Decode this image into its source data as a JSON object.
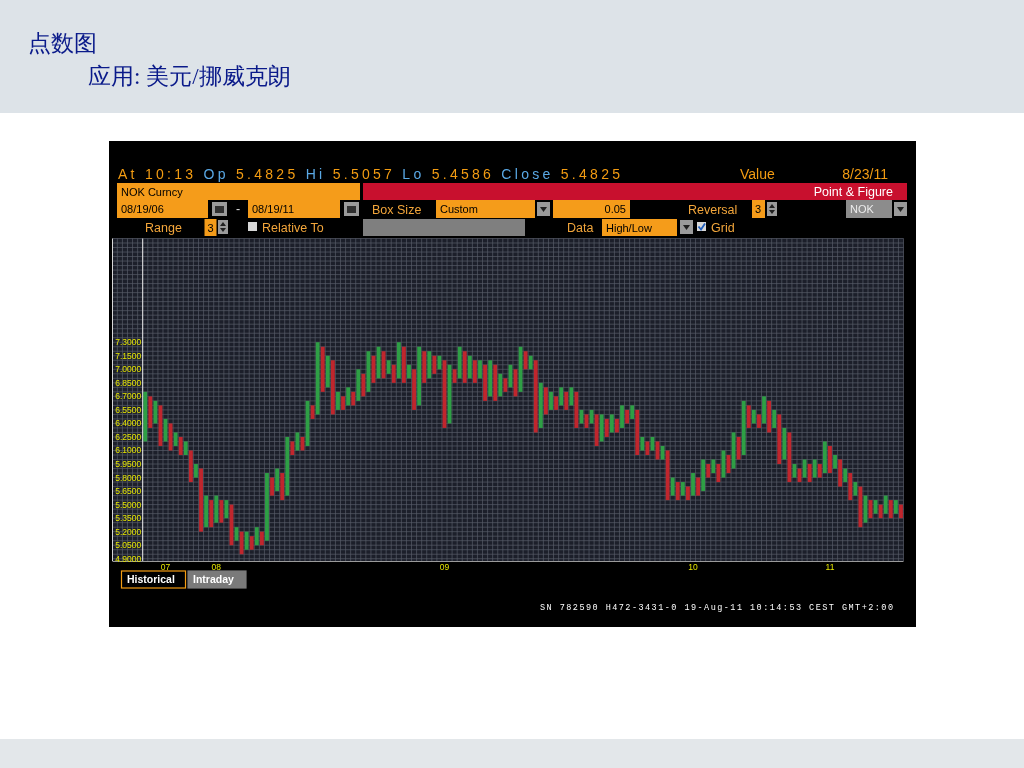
{
  "chart_data": {
    "type": "bar",
    "title": "点数图",
    "subtitle": "应用: 美元/挪威克朗",
    "categories": [
      null,
      null,
      null,
      null,
      "07",
      null,
      null,
      null,
      null,
      null,
      null,
      null,
      null,
      null,
      "08",
      null,
      null,
      null,
      null,
      null,
      null,
      null,
      null,
      null,
      null,
      null,
      null,
      null,
      null,
      null,
      null,
      null,
      null,
      null,
      null,
      null,
      null,
      null,
      null,
      null,
      null,
      null,
      null,
      null,
      null,
      null,
      null,
      null,
      null,
      null,
      null,
      null,
      null,
      null,
      null,
      null,
      null,
      null,
      null,
      "09",
      null,
      null,
      null,
      null,
      null,
      null,
      null,
      null,
      null,
      null,
      null,
      null,
      null,
      null,
      null,
      null,
      null,
      null,
      null,
      null,
      null,
      null,
      null,
      null,
      null,
      null,
      null,
      null,
      null,
      null,
      null,
      null,
      null,
      null,
      null,
      null,
      null,
      null,
      null,
      null,
      null,
      null,
      null,
      null,
      null,
      null,
      null,
      null,
      "10",
      null,
      null,
      null,
      null,
      null,
      null,
      null,
      null,
      null,
      null,
      null,
      null,
      null,
      null,
      null,
      null,
      null,
      null,
      null,
      null,
      null,
      null,
      null,
      null,
      null,
      null,
      "11",
      null,
      null,
      null,
      null,
      null,
      null,
      null,
      null,
      null,
      null,
      null,
      null,
      null,
      null
    ],
    "base": [
      6.2,
      6.35,
      6.4,
      6.15,
      6.2,
      6.1,
      6.15,
      6.05,
      6.05,
      5.75,
      5.8,
      5.2,
      5.25,
      5.25,
      5.3,
      5.3,
      5.35,
      5.05,
      5.1,
      4.95,
      5.0,
      5.0,
      5.05,
      5.05,
      5.1,
      5.6,
      5.65,
      5.55,
      5.6,
      6.05,
      6.1,
      6.1,
      6.15,
      6.45,
      6.5,
      6.75,
      6.8,
      6.5,
      6.55,
      6.55,
      6.6,
      6.6,
      6.65,
      6.7,
      6.75,
      6.85,
      6.9,
      6.9,
      6.95,
      6.85,
      6.9,
      6.85,
      6.9,
      6.55,
      6.6,
      6.85,
      6.9,
      6.95,
      7.0,
      6.35,
      6.4,
      6.85,
      6.9,
      6.85,
      6.9,
      6.85,
      6.9,
      6.65,
      6.7,
      6.65,
      6.7,
      6.75,
      6.8,
      6.7,
      6.75,
      7.0,
      7.0,
      6.3,
      6.35,
      6.5,
      6.55,
      6.55,
      6.6,
      6.55,
      6.6,
      6.35,
      6.4,
      6.35,
      6.4,
      6.15,
      6.2,
      6.25,
      6.3,
      6.3,
      6.35,
      6.4,
      6.45,
      6.05,
      6.1,
      6.05,
      6.1,
      6.0,
      6.0,
      5.55,
      5.6,
      5.55,
      5.6,
      5.55,
      5.6,
      5.6,
      5.65,
      5.8,
      5.85,
      5.75,
      5.8,
      5.85,
      5.9,
      6.0,
      6.05,
      6.35,
      6.4,
      6.35,
      6.4,
      6.3,
      6.35,
      5.95,
      6.0,
      5.75,
      5.8,
      5.75,
      5.8,
      5.75,
      5.8,
      5.8,
      5.85,
      5.85,
      5.9,
      5.7,
      5.75,
      5.55,
      5.6,
      5.25,
      5.3,
      5.35,
      5.4,
      5.35,
      5.4,
      5.35,
      5.4,
      5.35
    ],
    "values": [
      0.55,
      0.35,
      0.25,
      0.45,
      0.25,
      0.3,
      0.15,
      0.2,
      0.15,
      0.35,
      0.15,
      0.7,
      0.35,
      0.3,
      0.3,
      0.25,
      0.2,
      0.45,
      0.15,
      0.25,
      0.2,
      0.15,
      0.2,
      0.15,
      0.75,
      0.2,
      0.25,
      0.3,
      0.65,
      0.15,
      0.2,
      0.15,
      0.5,
      0.15,
      0.8,
      0.5,
      0.35,
      0.6,
      0.2,
      0.15,
      0.2,
      0.15,
      0.35,
      0.25,
      0.45,
      0.3,
      0.35,
      0.3,
      0.15,
      0.2,
      0.4,
      0.4,
      0.15,
      0.45,
      0.65,
      0.35,
      0.3,
      0.2,
      0.15,
      0.75,
      0.65,
      0.15,
      0.35,
      0.35,
      0.25,
      0.25,
      0.2,
      0.4,
      0.4,
      0.4,
      0.25,
      0.15,
      0.25,
      0.3,
      0.5,
      0.2,
      0.15,
      0.8,
      0.5,
      0.3,
      0.2,
      0.15,
      0.2,
      0.2,
      0.2,
      0.4,
      0.15,
      0.15,
      0.15,
      0.35,
      0.3,
      0.2,
      0.2,
      0.15,
      0.25,
      0.15,
      0.15,
      0.5,
      0.15,
      0.15,
      0.15,
      0.2,
      0.15,
      0.55,
      0.2,
      0.2,
      0.15,
      0.15,
      0.25,
      0.2,
      0.35,
      0.15,
      0.15,
      0.2,
      0.3,
      0.2,
      0.4,
      0.25,
      0.6,
      0.25,
      0.15,
      0.15,
      0.3,
      0.35,
      0.2,
      0.55,
      0.35,
      0.55,
      0.15,
      0.15,
      0.2,
      0.2,
      0.2,
      0.15,
      0.35,
      0.3,
      0.15,
      0.3,
      0.15,
      0.3,
      0.15,
      0.45,
      0.3,
      0.2,
      0.15,
      0.15,
      0.2,
      0.2,
      0.15,
      0.15
    ],
    "colors": [
      "#2e9f45",
      "#c0262d",
      "#2e9f45",
      "#c0262d",
      "#2e9f45",
      "#c0262d",
      "#2e9f45",
      "#c0262d",
      "#2e9f45",
      "#c0262d",
      "#2e9f45",
      "#c0262d",
      "#2e9f45",
      "#c0262d",
      "#2e9f45",
      "#c0262d",
      "#2e9f45",
      "#c0262d",
      "#2e9f45",
      "#c0262d",
      "#2e9f45",
      "#c0262d",
      "#2e9f45",
      "#c0262d",
      "#2e9f45",
      "#c0262d",
      "#2e9f45",
      "#c0262d",
      "#2e9f45",
      "#c0262d",
      "#2e9f45",
      "#c0262d",
      "#2e9f45",
      "#c0262d",
      "#2e9f45",
      "#c0262d",
      "#2e9f45",
      "#c0262d",
      "#2e9f45",
      "#c0262d",
      "#2e9f45",
      "#c0262d",
      "#2e9f45",
      "#c0262d",
      "#2e9f45",
      "#c0262d",
      "#2e9f45",
      "#c0262d",
      "#2e9f45",
      "#c0262d",
      "#2e9f45",
      "#c0262d",
      "#2e9f45",
      "#c0262d",
      "#2e9f45",
      "#c0262d",
      "#2e9f45",
      "#c0262d",
      "#2e9f45",
      "#c0262d",
      "#2e9f45",
      "#c0262d",
      "#2e9f45",
      "#c0262d",
      "#2e9f45",
      "#c0262d",
      "#2e9f45",
      "#c0262d",
      "#2e9f45",
      "#c0262d",
      "#2e9f45",
      "#c0262d",
      "#2e9f45",
      "#c0262d",
      "#2e9f45",
      "#c0262d",
      "#2e9f45",
      "#c0262d",
      "#2e9f45",
      "#c0262d",
      "#2e9f45",
      "#c0262d",
      "#2e9f45",
      "#c0262d",
      "#2e9f45",
      "#c0262d",
      "#2e9f45",
      "#c0262d",
      "#2e9f45",
      "#c0262d",
      "#2e9f45",
      "#c0262d",
      "#2e9f45",
      "#c0262d",
      "#2e9f45",
      "#c0262d",
      "#2e9f45",
      "#c0262d",
      "#2e9f45",
      "#c0262d",
      "#2e9f45",
      "#c0262d",
      "#2e9f45",
      "#c0262d",
      "#2e9f45",
      "#c0262d",
      "#2e9f45",
      "#c0262d",
      "#2e9f45",
      "#c0262d",
      "#2e9f45",
      "#c0262d",
      "#2e9f45",
      "#c0262d",
      "#2e9f45",
      "#c0262d",
      "#2e9f45",
      "#c0262d",
      "#2e9f45",
      "#c0262d",
      "#2e9f45",
      "#c0262d",
      "#2e9f45",
      "#c0262d",
      "#2e9f45",
      "#c0262d",
      "#2e9f45",
      "#c0262d",
      "#2e9f45",
      "#c0262d",
      "#2e9f45",
      "#c0262d",
      "#2e9f45",
      "#c0262d",
      "#2e9f45",
      "#c0262d",
      "#2e9f45",
      "#c0262d",
      "#2e9f45",
      "#c0262d",
      "#2e9f45",
      "#c0262d",
      "#2e9f45",
      "#c0262d",
      "#2e9f45",
      "#c0262d",
      "#2e9f45",
      "#c0262d",
      "#2e9f45",
      "#c0262d"
    ],
    "ylim": [
      4.875,
      8.45
    ],
    "yticks": [
      {
        "value": 4.9,
        "label": "4.9000"
      },
      {
        "value": 5.05,
        "label": "5.0500"
      },
      {
        "value": 5.2,
        "label": "5.2000"
      },
      {
        "value": 5.35,
        "label": "5.3500"
      },
      {
        "value": 5.5,
        "label": "5.5000"
      },
      {
        "value": 5.65,
        "label": "5.6500"
      },
      {
        "value": 5.8,
        "label": "5.8000"
      },
      {
        "value": 5.95,
        "label": "5.9500"
      },
      {
        "value": 6.1,
        "label": "6.1000"
      },
      {
        "value": 6.25,
        "label": "6.2500"
      },
      {
        "value": 6.4,
        "label": "6.4000"
      },
      {
        "value": 6.55,
        "label": "6.5500"
      },
      {
        "value": 6.7,
        "label": "6.7000"
      },
      {
        "value": 6.85,
        "label": "6.8500"
      },
      {
        "value": 7.0,
        "label": "7.0000"
      },
      {
        "value": 7.15,
        "label": "7.1500"
      },
      {
        "value": 7.3,
        "label": "7.3000"
      }
    ],
    "grid": true,
    "annotations": [
      "At 10:13 Op 5.4825 Hi 5.5057 Lo 5.4586 Close 5.4825",
      "Value",
      "8/23/11",
      "NOK Curncy",
      "Point & Figure",
      "08/19/06",
      "-",
      "08/19/11",
      "Box Size",
      "Custom",
      "0.05",
      "Reversal",
      "3",
      "NOK",
      "Range",
      "3",
      "Relative To",
      "Data",
      "High/Low",
      "Grid",
      "Historical",
      "Intraday",
      "SN 782590 H472-3431-0 19-Aug-11 10:14:53 CEST GMT+2:00"
    ]
  }
}
